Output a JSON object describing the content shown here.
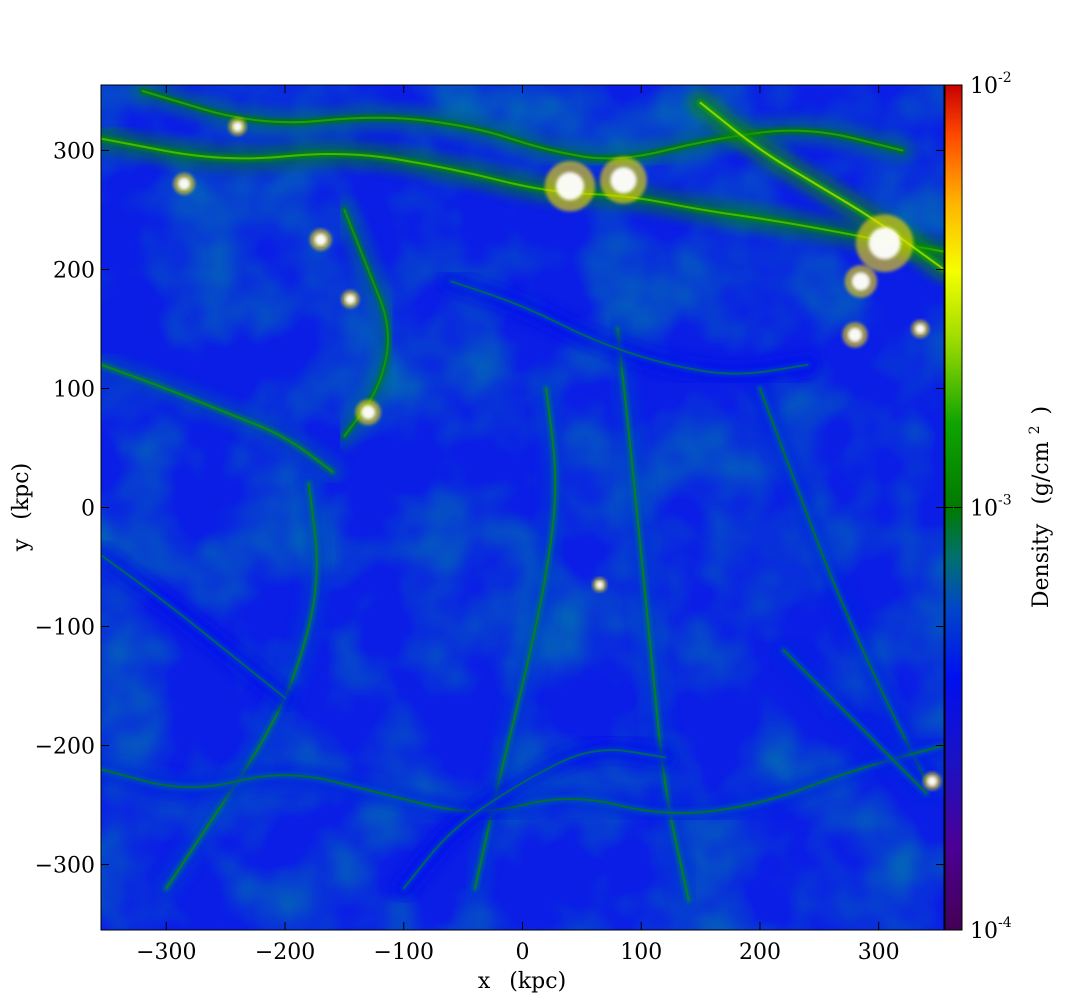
{
  "chart_data": {
    "type": "heatmap",
    "title": "",
    "field": "Density",
    "colorbar_label": "Density",
    "colorbar_unit_base": "(g/cm",
    "colorbar_unit_exp": "2",
    "colorbar_unit_close": ")",
    "colorscale": "log",
    "colormap": "nipy_spectral-like (purple–blue–green–yellow–red)",
    "crange": [
      0.0001,
      0.01
    ],
    "colorbar_ticks": [
      {
        "value": 0.0001,
        "base": "10",
        "exp": "-4"
      },
      {
        "value": 0.001,
        "base": "10",
        "exp": "-3"
      },
      {
        "value": 0.01,
        "base": "10",
        "exp": "-2"
      }
    ],
    "colorbar_stops": [
      {
        "t": 0.0,
        "color": "#440054"
      },
      {
        "t": 0.1,
        "color": "#4b0096"
      },
      {
        "t": 0.2,
        "color": "#1a12c4"
      },
      {
        "t": 0.3,
        "color": "#0010f0"
      },
      {
        "t": 0.38,
        "color": "#0046c8"
      },
      {
        "t": 0.44,
        "color": "#007070"
      },
      {
        "t": 0.5,
        "color": "#007a00"
      },
      {
        "t": 0.6,
        "color": "#10a400"
      },
      {
        "t": 0.7,
        "color": "#a0dc00"
      },
      {
        "t": 0.78,
        "color": "#f4ff00"
      },
      {
        "t": 0.86,
        "color": "#ffb400"
      },
      {
        "t": 0.94,
        "color": "#ff4a00"
      },
      {
        "t": 1.0,
        "color": "#c80000"
      }
    ],
    "xlabel_text": "x",
    "xlabel_unit": "(kpc)",
    "ylabel_text": "y",
    "ylabel_unit": "(kpc)",
    "xlim": [
      -355,
      355
    ],
    "ylim": [
      -355,
      355
    ],
    "xticks": [
      -300,
      -200,
      -100,
      0,
      100,
      200,
      300
    ],
    "yticks": [
      -300,
      -200,
      -100,
      0,
      100,
      200,
      300
    ],
    "xtick_labels": [
      "−300",
      "−200",
      "−100",
      "0",
      "100",
      "200",
      "300"
    ],
    "ytick_labels": [
      "−300",
      "−200",
      "−100",
      "0",
      "100",
      "200",
      "300"
    ],
    "grid": false,
    "background_color": "#0a1ee6",
    "filaments": [
      {
        "points": [
          [
            -355,
            310
          ],
          [
            -250,
            290
          ],
          [
            -150,
            300
          ],
          [
            -60,
            285
          ],
          [
            20,
            265
          ],
          [
            90,
            262
          ],
          [
            150,
            250
          ],
          [
            220,
            240
          ],
          [
            300,
            225
          ],
          [
            355,
            215
          ]
        ],
        "level": 0.0012
      },
      {
        "points": [
          [
            -320,
            350
          ],
          [
            -220,
            320
          ],
          [
            -120,
            330
          ],
          [
            -40,
            320
          ],
          [
            20,
            300
          ],
          [
            80,
            290
          ],
          [
            160,
            310
          ],
          [
            240,
            320
          ],
          [
            320,
            300
          ]
        ],
        "level": 0.001
      },
      {
        "points": [
          [
            150,
            340
          ],
          [
            200,
            300
          ],
          [
            250,
            270
          ],
          [
            300,
            240
          ],
          [
            355,
            200
          ]
        ],
        "level": 0.0016
      },
      {
        "points": [
          [
            -355,
            120
          ],
          [
            -300,
            100
          ],
          [
            -250,
            80
          ],
          [
            -200,
            60
          ],
          [
            -160,
            30
          ]
        ],
        "level": 0.0008
      },
      {
        "points": [
          [
            -150,
            60
          ],
          [
            -120,
            100
          ],
          [
            -110,
            150
          ],
          [
            -130,
            200
          ],
          [
            -150,
            250
          ]
        ],
        "level": 0.0009
      },
      {
        "points": [
          [
            -180,
            20
          ],
          [
            -170,
            -60
          ],
          [
            -190,
            -140
          ],
          [
            -220,
            -200
          ],
          [
            -260,
            -260
          ],
          [
            -300,
            -320
          ]
        ],
        "level": 0.0007
      },
      {
        "points": [
          [
            20,
            100
          ],
          [
            30,
            20
          ],
          [
            20,
            -60
          ],
          [
            0,
            -150
          ],
          [
            -20,
            -230
          ],
          [
            -40,
            -320
          ]
        ],
        "level": 0.0007
      },
      {
        "points": [
          [
            80,
            150
          ],
          [
            90,
            60
          ],
          [
            100,
            -40
          ],
          [
            110,
            -140
          ],
          [
            120,
            -240
          ],
          [
            140,
            -330
          ]
        ],
        "level": 0.0007
      },
      {
        "points": [
          [
            200,
            100
          ],
          [
            230,
            20
          ],
          [
            260,
            -60
          ],
          [
            300,
            -150
          ],
          [
            340,
            -230
          ]
        ],
        "level": 0.0006
      },
      {
        "points": [
          [
            -355,
            -220
          ],
          [
            -280,
            -240
          ],
          [
            -200,
            -220
          ],
          [
            -120,
            -240
          ],
          [
            -40,
            -260
          ],
          [
            40,
            -240
          ],
          [
            120,
            -260
          ],
          [
            200,
            -250
          ],
          [
            280,
            -220
          ],
          [
            355,
            -200
          ]
        ],
        "level": 0.0006
      },
      {
        "points": [
          [
            -100,
            -320
          ],
          [
            -60,
            -270
          ],
          [
            0,
            -230
          ],
          [
            60,
            -200
          ],
          [
            120,
            -210
          ]
        ],
        "level": 0.0005
      },
      {
        "points": [
          [
            220,
            -120
          ],
          [
            260,
            -160
          ],
          [
            300,
            -200
          ],
          [
            340,
            -240
          ]
        ],
        "level": 0.0006
      },
      {
        "points": [
          [
            -355,
            -40
          ],
          [
            -300,
            -80
          ],
          [
            -250,
            -120
          ],
          [
            -200,
            -160
          ]
        ],
        "level": 0.0005
      },
      {
        "points": [
          [
            -60,
            190
          ],
          [
            0,
            170
          ],
          [
            60,
            140
          ],
          [
            120,
            120
          ],
          [
            180,
            110
          ],
          [
            240,
            120
          ]
        ],
        "level": 0.0005
      }
    ],
    "dense_clumps": [
      {
        "x": 40,
        "y": 270,
        "r": 14
      },
      {
        "x": 85,
        "y": 275,
        "r": 13
      },
      {
        "x": 305,
        "y": 222,
        "r": 16
      },
      {
        "x": 285,
        "y": 190,
        "r": 9
      },
      {
        "x": -285,
        "y": 272,
        "r": 6
      },
      {
        "x": -170,
        "y": 225,
        "r": 6
      },
      {
        "x": -130,
        "y": 80,
        "r": 7
      },
      {
        "x": -145,
        "y": 175,
        "r": 5
      },
      {
        "x": -240,
        "y": 320,
        "r": 5
      },
      {
        "x": 335,
        "y": 150,
        "r": 5
      },
      {
        "x": 280,
        "y": 145,
        "r": 7
      },
      {
        "x": 65,
        "y": -65,
        "r": 4
      },
      {
        "x": 345,
        "y": -230,
        "r": 5
      }
    ]
  }
}
